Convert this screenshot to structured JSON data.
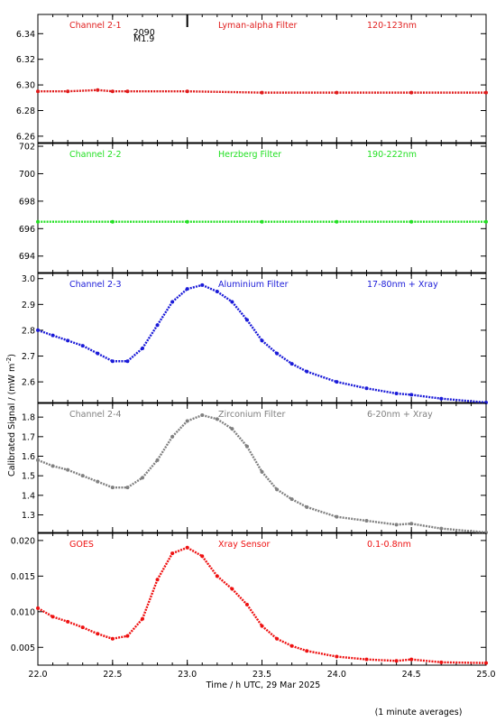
{
  "figure": {
    "ylabel": "Calibrated Signal / (mW m",
    "ylabel_sup": "-2",
    "ylabel_tail": ")",
    "xlabel": "Time / h UTC, 29 Mar 2025",
    "footnote": "(1 minute averages)",
    "event_marker": {
      "x": 23.0,
      "label1": "2090",
      "label2": "M1.9"
    }
  },
  "chart_data": [
    {
      "type": "scatter",
      "channel": "Channel 2-1",
      "filter": "Lyman-alpha Filter",
      "band": "120-123nm",
      "color": "#e01b1b",
      "xlim": [
        22.0,
        25.0
      ],
      "ylim": [
        6.255,
        6.355
      ],
      "yticks": [
        "6.26",
        "6.28",
        "6.30",
        "6.32",
        "6.34"
      ],
      "x": [
        22.0,
        22.2,
        22.4,
        22.5,
        22.6,
        23.0,
        23.5,
        24.0,
        24.5,
        25.0
      ],
      "y": [
        6.295,
        6.295,
        6.296,
        6.295,
        6.295,
        6.295,
        6.294,
        6.294,
        6.294,
        6.294
      ]
    },
    {
      "type": "scatter",
      "channel": "Channel 2-2",
      "filter": "Herzberg Filter",
      "band": "190-222nm",
      "color": "#22e022",
      "xlim": [
        22.0,
        25.0
      ],
      "ylim": [
        692.8,
        702.2
      ],
      "yticks": [
        "694",
        "696",
        "698",
        "700",
        "702"
      ],
      "x": [
        22.0,
        22.5,
        23.0,
        23.5,
        24.0,
        24.5,
        25.0
      ],
      "y": [
        696.5,
        696.5,
        696.5,
        696.5,
        696.5,
        696.5,
        696.5
      ]
    },
    {
      "type": "scatter",
      "channel": "Channel 2-3",
      "filter": "Aluminium Filter",
      "band": "17-80nm + Xray",
      "color": "#1a1ad8",
      "xlim": [
        22.0,
        25.0
      ],
      "ylim": [
        2.52,
        3.02
      ],
      "yticks": [
        "2.6",
        "2.7",
        "2.8",
        "2.9",
        "3.0"
      ],
      "x": [
        22.0,
        22.1,
        22.2,
        22.3,
        22.4,
        22.5,
        22.6,
        22.7,
        22.8,
        22.9,
        23.0,
        23.1,
        23.2,
        23.3,
        23.4,
        23.5,
        23.6,
        23.7,
        23.8,
        24.0,
        24.2,
        24.4,
        24.5,
        24.7,
        25.0
      ],
      "y": [
        2.8,
        2.78,
        2.76,
        2.74,
        2.71,
        2.68,
        2.68,
        2.73,
        2.82,
        2.91,
        2.96,
        2.975,
        2.95,
        2.91,
        2.84,
        2.76,
        2.71,
        2.67,
        2.64,
        2.6,
        2.575,
        2.555,
        2.55,
        2.535,
        2.52
      ]
    },
    {
      "type": "scatter",
      "channel": "Channel 2-4",
      "filter": "Zirconium Filter",
      "band": "6-20nm + Xray",
      "color": "#808080",
      "xlim": [
        22.0,
        25.0
      ],
      "ylim": [
        1.21,
        1.87
      ],
      "yticks": [
        "1.3",
        "1.4",
        "1.5",
        "1.6",
        "1.7",
        "1.8"
      ],
      "x": [
        22.0,
        22.1,
        22.2,
        22.3,
        22.4,
        22.5,
        22.6,
        22.7,
        22.8,
        22.9,
        23.0,
        23.1,
        23.2,
        23.3,
        23.4,
        23.5,
        23.6,
        23.7,
        23.8,
        24.0,
        24.2,
        24.4,
        24.5,
        24.7,
        25.0
      ],
      "y": [
        1.58,
        1.55,
        1.53,
        1.5,
        1.47,
        1.44,
        1.44,
        1.49,
        1.58,
        1.7,
        1.78,
        1.81,
        1.79,
        1.74,
        1.65,
        1.52,
        1.43,
        1.38,
        1.34,
        1.29,
        1.27,
        1.25,
        1.255,
        1.23,
        1.21
      ]
    },
    {
      "type": "scatter",
      "channel": "GOES",
      "filter": "Xray Sensor",
      "band": "0.1-0.8nm",
      "color": "#ee1111",
      "xlim": [
        22.0,
        25.0
      ],
      "ylim": [
        0.0025,
        0.021
      ],
      "yticks": [
        "0.005",
        "0.010",
        "0.015",
        "0.020"
      ],
      "x": [
        22.0,
        22.1,
        22.2,
        22.3,
        22.4,
        22.5,
        22.6,
        22.7,
        22.8,
        22.9,
        23.0,
        23.1,
        23.2,
        23.3,
        23.4,
        23.5,
        23.6,
        23.7,
        23.8,
        24.0,
        24.2,
        24.4,
        24.5,
        24.7,
        25.0
      ],
      "y": [
        0.0105,
        0.0093,
        0.0086,
        0.0078,
        0.0069,
        0.0062,
        0.0066,
        0.009,
        0.0145,
        0.0182,
        0.019,
        0.0178,
        0.015,
        0.0132,
        0.011,
        0.008,
        0.0062,
        0.0052,
        0.0045,
        0.0037,
        0.0033,
        0.0031,
        0.0033,
        0.0029,
        0.0028
      ]
    }
  ],
  "xaxis": {
    "ticks": [
      "22.0",
      "22.5",
      "23.0",
      "23.5",
      "24.0",
      "24.5",
      "25.0"
    ]
  }
}
